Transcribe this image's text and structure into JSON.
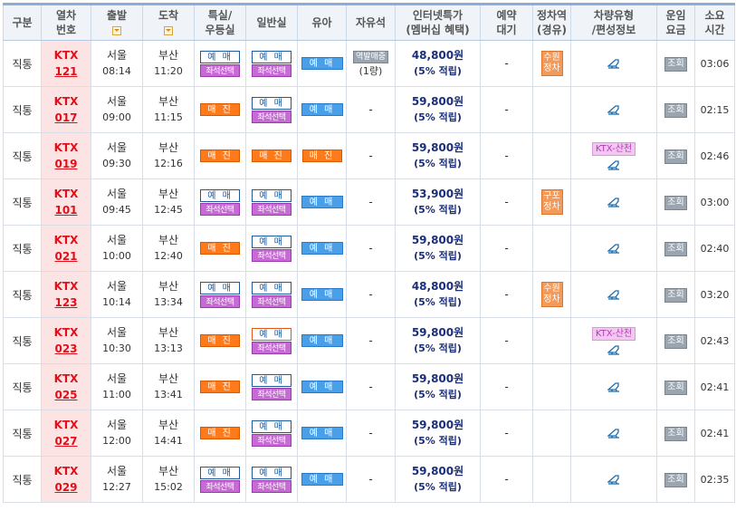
{
  "headers": {
    "type": "구분",
    "train_no_1": "열차",
    "train_no_2": "번호",
    "depart": "출발",
    "arrive": "도착",
    "special_1": "특실/",
    "special_2": "우등실",
    "general": "일반실",
    "baby": "유아",
    "free": "자유석",
    "internet_1": "인터넷특가",
    "internet_2": "(멤버십 혜택)",
    "waitlist_1": "예약",
    "waitlist_2": "대기",
    "stop_1": "정차역",
    "stop_2": "(경유)",
    "vehicle_1": "차량유형",
    "vehicle_2": "/편성정보",
    "fare_1": "운임",
    "fare_2": "요금",
    "duration_1": "소요",
    "duration_2": "시간"
  },
  "labels": {
    "reserve": "예 매",
    "soldout": "매 진",
    "seat_select": "좌석선택",
    "fare_query": "조회",
    "dash": "-",
    "free_badge": "역발매중",
    "free_count": "(1량)"
  },
  "colors": {
    "train_no_bg": "#fde4e4",
    "train_no_text": "#e0101a",
    "price_text": "#1a2e7a",
    "soldout_bg": "#ff7a1a",
    "seat_select_bg": "#c86ad6",
    "baby_bg": "#4aa0e8"
  },
  "rows": [
    {
      "type": "직통",
      "train": "KTX",
      "num": "121",
      "dep_st": "서울",
      "dep_tm": "08:14",
      "arr_st": "부산",
      "arr_tm": "11:20",
      "special": "reserve",
      "special_seat": true,
      "general": "reserve",
      "general_seat": true,
      "general_sel": false,
      "baby": "예 매",
      "free": {
        "badge": "역발매중",
        "count": "(1량)"
      },
      "price": "48,800원",
      "disc": "(5% 적립)",
      "wait": "-",
      "stop": "수원\n정차",
      "comp": "",
      "duration": "03:06"
    },
    {
      "type": "직통",
      "train": "KTX",
      "num": "017",
      "dep_st": "서울",
      "dep_tm": "09:00",
      "arr_st": "부산",
      "arr_tm": "11:15",
      "special": "soldout",
      "special_seat": false,
      "general": "reserve",
      "general_seat": true,
      "general_sel": false,
      "baby": "예 매",
      "free": null,
      "price": "59,800원",
      "disc": "(5% 적립)",
      "wait": "-",
      "stop": "",
      "comp": "",
      "duration": "02:15"
    },
    {
      "type": "직통",
      "train": "KTX",
      "num": "019",
      "dep_st": "서울",
      "dep_tm": "09:30",
      "arr_st": "부산",
      "arr_tm": "12:16",
      "special": "soldout",
      "special_seat": false,
      "general": "soldout",
      "general_seat": false,
      "general_sel": false,
      "baby": "매 진",
      "free": null,
      "price": "59,800원",
      "disc": "(5% 적립)",
      "wait": "-",
      "stop": "",
      "comp": "KTX-산천",
      "duration": "02:46"
    },
    {
      "type": "직통",
      "train": "KTX",
      "num": "101",
      "dep_st": "서울",
      "dep_tm": "09:45",
      "arr_st": "부산",
      "arr_tm": "12:45",
      "special": "reserve",
      "special_seat": true,
      "general": "reserve",
      "general_seat": true,
      "general_sel": false,
      "baby": "예 매",
      "free": null,
      "price": "53,900원",
      "disc": "(5% 적립)",
      "wait": "-",
      "stop": "구포\n정차",
      "comp": "",
      "duration": "03:00"
    },
    {
      "type": "직통",
      "train": "KTX",
      "num": "021",
      "dep_st": "서울",
      "dep_tm": "10:00",
      "arr_st": "부산",
      "arr_tm": "12:40",
      "special": "soldout",
      "special_seat": false,
      "general": "reserve",
      "general_seat": true,
      "general_sel": false,
      "baby": "예 매",
      "free": null,
      "price": "59,800원",
      "disc": "(5% 적립)",
      "wait": "-",
      "stop": "",
      "comp": "",
      "duration": "02:40"
    },
    {
      "type": "직통",
      "train": "KTX",
      "num": "123",
      "dep_st": "서울",
      "dep_tm": "10:14",
      "arr_st": "부산",
      "arr_tm": "13:34",
      "special": "reserve",
      "special_seat": true,
      "general": "reserve",
      "general_seat": true,
      "general_sel": false,
      "baby": "예 매",
      "free": null,
      "price": "48,800원",
      "disc": "(5% 적립)",
      "wait": "-",
      "stop": "수원\n정차",
      "comp": "",
      "duration": "03:20"
    },
    {
      "type": "직통",
      "train": "KTX",
      "num": "023",
      "dep_st": "서울",
      "dep_tm": "10:30",
      "arr_st": "부산",
      "arr_tm": "13:13",
      "special": "soldout",
      "special_seat": false,
      "general": "reserve",
      "general_seat": true,
      "general_sel": true,
      "baby": "예 매",
      "free": null,
      "price": "59,800원",
      "disc": "(5% 적립)",
      "wait": "-",
      "stop": "",
      "comp": "KTX-산천",
      "duration": "02:43"
    },
    {
      "type": "직통",
      "train": "KTX",
      "num": "025",
      "dep_st": "서울",
      "dep_tm": "11:00",
      "arr_st": "부산",
      "arr_tm": "13:41",
      "special": "soldout",
      "special_seat": false,
      "general": "reserve",
      "general_seat": true,
      "general_sel": false,
      "baby": "예 매",
      "free": null,
      "price": "59,800원",
      "disc": "(5% 적립)",
      "wait": "-",
      "stop": "",
      "comp": "",
      "duration": "02:41"
    },
    {
      "type": "직통",
      "train": "KTX",
      "num": "027",
      "dep_st": "서울",
      "dep_tm": "12:00",
      "arr_st": "부산",
      "arr_tm": "14:41",
      "special": "soldout",
      "special_seat": false,
      "general": "reserve",
      "general_seat": true,
      "general_sel": false,
      "baby": "예 매",
      "free": null,
      "price": "59,800원",
      "disc": "(5% 적립)",
      "wait": "-",
      "stop": "",
      "comp": "",
      "duration": "02:41"
    },
    {
      "type": "직통",
      "train": "KTX",
      "num": "029",
      "dep_st": "서울",
      "dep_tm": "12:27",
      "arr_st": "부산",
      "arr_tm": "15:02",
      "special": "reserve",
      "special_seat": true,
      "general": "reserve",
      "general_seat": true,
      "general_sel": false,
      "baby": "예 매",
      "free": null,
      "price": "59,800원",
      "disc": "(5% 적립)",
      "wait": "-",
      "stop": "",
      "comp": "",
      "duration": "02:35"
    }
  ]
}
